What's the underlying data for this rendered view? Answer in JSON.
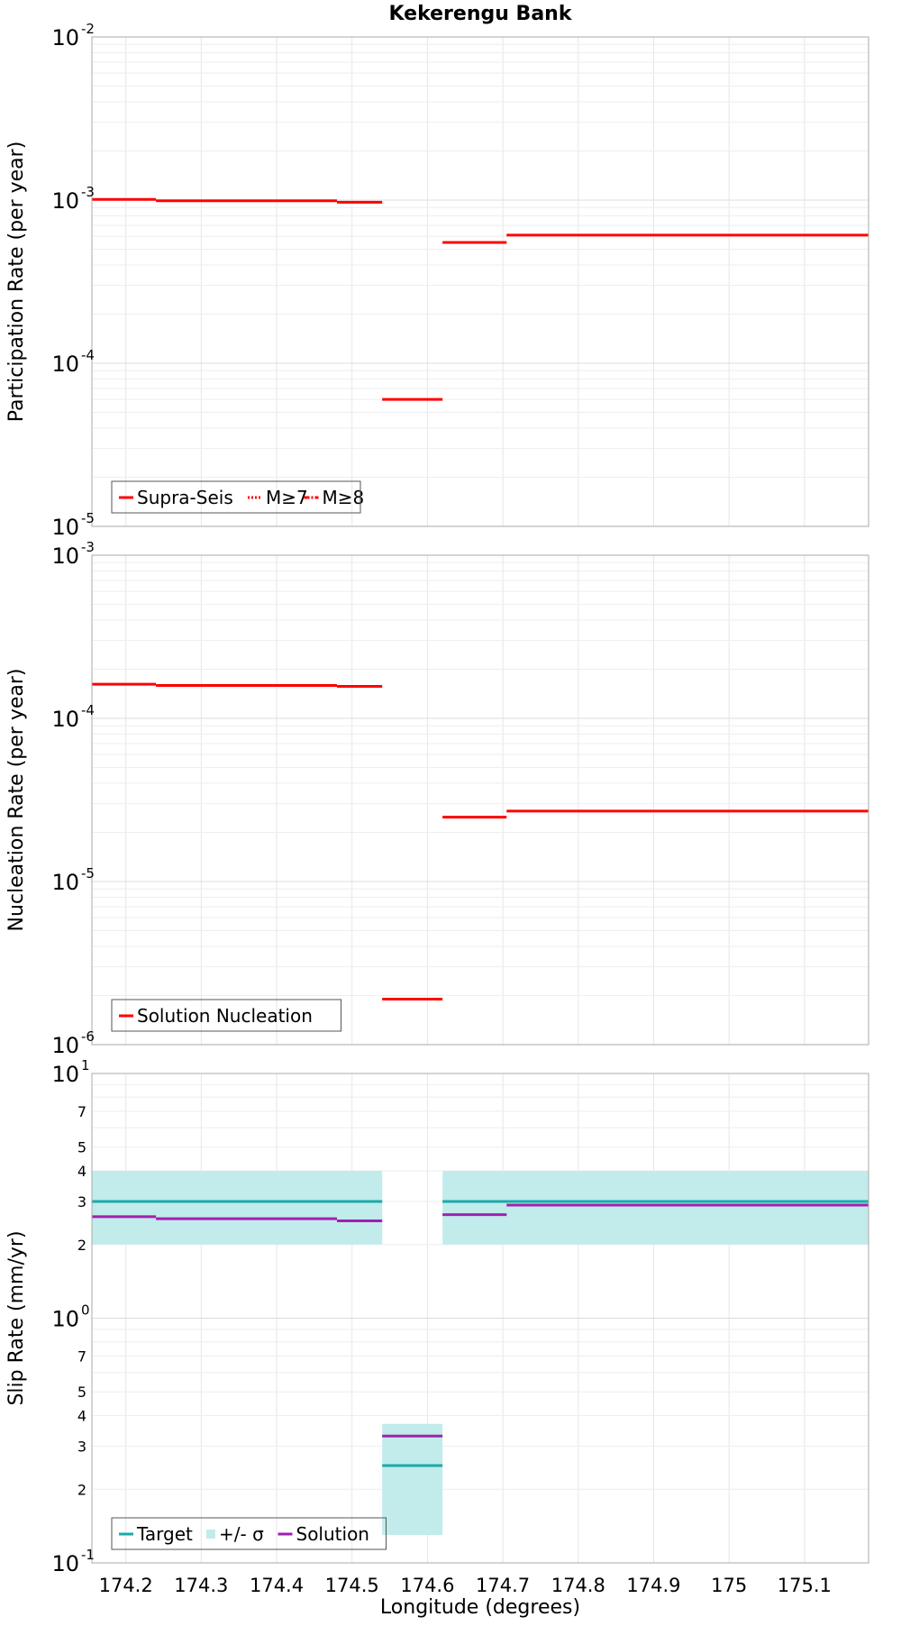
{
  "chart_data": {
    "title": "Kekerengu Bank",
    "xlabel": "Longitude (degrees)",
    "xlim": [
      174.155,
      175.185
    ],
    "xticks": [
      "174.2",
      "174.3",
      "174.4",
      "174.5",
      "174.6",
      "174.7",
      "174.8",
      "174.9",
      "175",
      "175.1"
    ],
    "xtick_values": [
      174.2,
      174.3,
      174.4,
      174.5,
      174.6,
      174.7,
      174.8,
      174.9,
      175.0,
      175.1
    ],
    "panels": [
      {
        "type": "line",
        "ylabel": "Participation Rate (per year)",
        "yscale": "log",
        "ylim_exp": [
          -5,
          -2
        ],
        "ytick_exponents": [
          "-5",
          "-4",
          "-3",
          "-2"
        ],
        "grid": true,
        "legend": {
          "placement": "bottom-left",
          "entries": [
            {
              "label": "Supra-Seis",
              "color": "#ff0000",
              "style": "solid"
            },
            {
              "label": "M≥7",
              "color": "#ff0000",
              "style": "dotted"
            },
            {
              "label": "M≥8",
              "color": "#ff0000",
              "style": "dashdot"
            }
          ]
        },
        "series": [
          {
            "name": "Supra-Seis",
            "color": "#ff0000",
            "segments": [
              {
                "x0": 174.155,
                "x1": 174.24,
                "y": 0.00101
              },
              {
                "x0": 174.24,
                "x1": 174.48,
                "y": 0.00099
              },
              {
                "x0": 174.48,
                "x1": 174.54,
                "y": 0.00097
              },
              {
                "x0": 174.54,
                "x1": 174.62,
                "y": 6e-05
              },
              {
                "x0": 174.62,
                "x1": 174.705,
                "y": 0.00055
              },
              {
                "x0": 174.705,
                "x1": 175.185,
                "y": 0.00061
              }
            ]
          }
        ]
      },
      {
        "type": "line",
        "ylabel": "Nucleation Rate (per year)",
        "yscale": "log",
        "ylim_exp": [
          -6,
          -3
        ],
        "ytick_exponents": [
          "-6",
          "-5",
          "-4",
          "-3"
        ],
        "grid": true,
        "legend": {
          "placement": "bottom-left",
          "entries": [
            {
              "label": "Solution Nucleation",
              "color": "#ff0000",
              "style": "solid"
            }
          ]
        },
        "series": [
          {
            "name": "Solution Nucleation",
            "color": "#ff0000",
            "segments": [
              {
                "x0": 174.155,
                "x1": 174.24,
                "y": 0.000162
              },
              {
                "x0": 174.24,
                "x1": 174.48,
                "y": 0.000159
              },
              {
                "x0": 174.48,
                "x1": 174.54,
                "y": 0.000157
              },
              {
                "x0": 174.54,
                "x1": 174.62,
                "y": 1.9e-06
              },
              {
                "x0": 174.62,
                "x1": 174.705,
                "y": 2.48e-05
              },
              {
                "x0": 174.705,
                "x1": 175.185,
                "y": 2.7e-05
              }
            ]
          }
        ]
      },
      {
        "type": "line",
        "ylabel": "Slip Rate (mm/yr)",
        "yscale": "log",
        "ylim_exp": [
          -1,
          1
        ],
        "ytick_exponents": [
          "-1",
          "0",
          "1"
        ],
        "minor_labels": [
          "2",
          "3",
          "4",
          "5",
          "7"
        ],
        "grid": true,
        "legend": {
          "placement": "bottom-left",
          "entries": [
            {
              "label": "Target",
              "color": "#1aaaaa",
              "style": "solid"
            },
            {
              "label": "+/- σ",
              "color": "#c2ebeb",
              "style": "fill"
            },
            {
              "label": "Solution",
              "color": "#a020b0",
              "style": "solid"
            }
          ]
        },
        "bands": [
          {
            "x0": 174.155,
            "x1": 174.54,
            "ylo": 2.0,
            "yhi": 4.0,
            "color": "#c2ebeb"
          },
          {
            "x0": 174.54,
            "x1": 174.62,
            "ylo": 0.13,
            "yhi": 0.37,
            "color": "#c2ebeb"
          },
          {
            "x0": 174.62,
            "x1": 175.185,
            "ylo": 2.0,
            "yhi": 4.0,
            "color": "#c2ebeb"
          }
        ],
        "series": [
          {
            "name": "Target",
            "color": "#1aaaaa",
            "segments": [
              {
                "x0": 174.155,
                "x1": 174.54,
                "y": 3.0
              },
              {
                "x0": 174.54,
                "x1": 174.62,
                "y": 0.25
              },
              {
                "x0": 174.62,
                "x1": 175.185,
                "y": 3.0
              }
            ]
          },
          {
            "name": "Solution",
            "color": "#a020b0",
            "segments": [
              {
                "x0": 174.155,
                "x1": 174.24,
                "y": 2.6
              },
              {
                "x0": 174.24,
                "x1": 174.48,
                "y": 2.55
              },
              {
                "x0": 174.48,
                "x1": 174.54,
                "y": 2.5
              },
              {
                "x0": 174.54,
                "x1": 174.62,
                "y": 0.33
              },
              {
                "x0": 174.62,
                "x1": 174.705,
                "y": 2.65
              },
              {
                "x0": 174.705,
                "x1": 175.185,
                "y": 2.9
              }
            ]
          }
        ]
      }
    ]
  }
}
